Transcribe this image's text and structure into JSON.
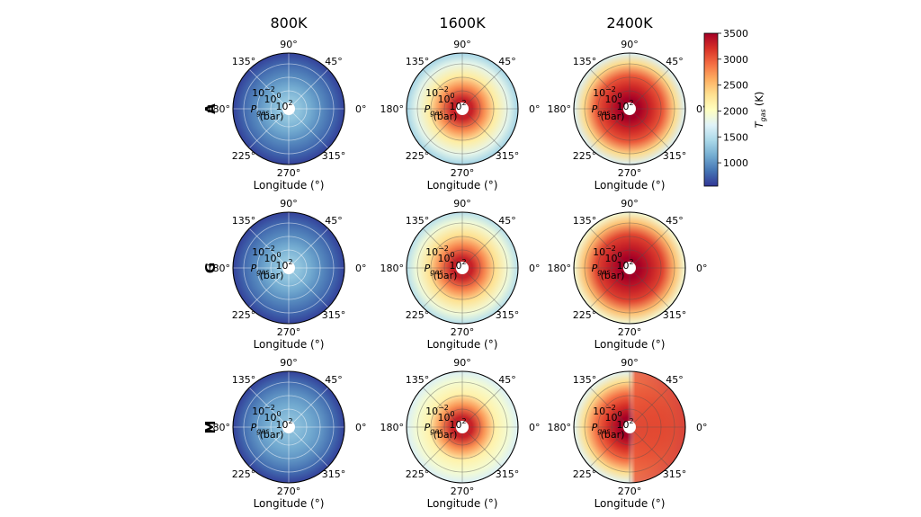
{
  "chart_data": {
    "type": "heatmap",
    "subtype": "polar-contour-grid",
    "column_titles": [
      "800K",
      "1600K",
      "2400K"
    ],
    "row_labels": [
      "A",
      "G",
      "M"
    ],
    "xlabel": "Longitude (°)",
    "angular_ticks": [
      "0°",
      "45°",
      "90°",
      "135°",
      "180°",
      "225°",
      "270°",
      "315°"
    ],
    "radial_label": "P_gas (bar)",
    "radial_label_main": "P",
    "radial_label_sub": "gas",
    "radial_label_unit": "(bar)",
    "radial_ticks": [
      {
        "base": "10",
        "exp": "−2"
      },
      {
        "base": "10",
        "exp": "0"
      },
      {
        "base": "10",
        "exp": "2"
      }
    ],
    "radial_scale": "log (pressure increases toward center)",
    "colorbar": {
      "label_main": "T",
      "label_sub": "gas",
      "label_unit": "(K)",
      "ticks": [
        1000,
        1500,
        2000,
        2500,
        3000,
        3500
      ],
      "range": [
        550,
        3500
      ],
      "colormap": "RdYlBu_r",
      "stops": [
        "#313695",
        "#4575b4",
        "#74add1",
        "#abd9e9",
        "#e0f3f8",
        "#ffffbf",
        "#fee090",
        "#fdae61",
        "#f46d43",
        "#d73027",
        "#a50026"
      ]
    },
    "panels": [
      {
        "row": "A",
        "column": "800K",
        "profile_K": {
          "outer": 600,
          "mid": 950,
          "inner": 1300
        },
        "grid": "dark"
      },
      {
        "row": "A",
        "column": "1600K",
        "profile_K": {
          "outer": 1400,
          "mid": 2200,
          "inner": 3300
        },
        "grid": "light"
      },
      {
        "row": "A",
        "column": "2400K",
        "profile_K": {
          "outer": 1700,
          "mid": 3000,
          "inner": 3500
        },
        "grid": "light"
      },
      {
        "row": "G",
        "column": "800K",
        "profile_K": {
          "outer": 600,
          "mid": 950,
          "inner": 1300
        },
        "grid": "dark"
      },
      {
        "row": "G",
        "column": "1600K",
        "profile_K": {
          "outer": 1500,
          "mid": 2300,
          "inner": 3300
        },
        "grid": "light"
      },
      {
        "row": "G",
        "column": "2400K",
        "profile_K": {
          "outer": 1900,
          "mid": 3100,
          "inner": 3500
        },
        "grid": "light"
      },
      {
        "row": "M",
        "column": "800K",
        "profile_K": {
          "outer": 600,
          "mid": 1000,
          "inner": 1250
        },
        "grid": "dark"
      },
      {
        "row": "M",
        "column": "1600K",
        "profile_K": {
          "outer": 1700,
          "mid": 2150,
          "inner": 3300
        },
        "grid": "light"
      },
      {
        "row": "M",
        "column": "2400K",
        "profile_K": {
          "outer": 1750,
          "mid": 2900,
          "inner": 3500
        },
        "grid": "light",
        "dayside_hot": true
      }
    ]
  }
}
